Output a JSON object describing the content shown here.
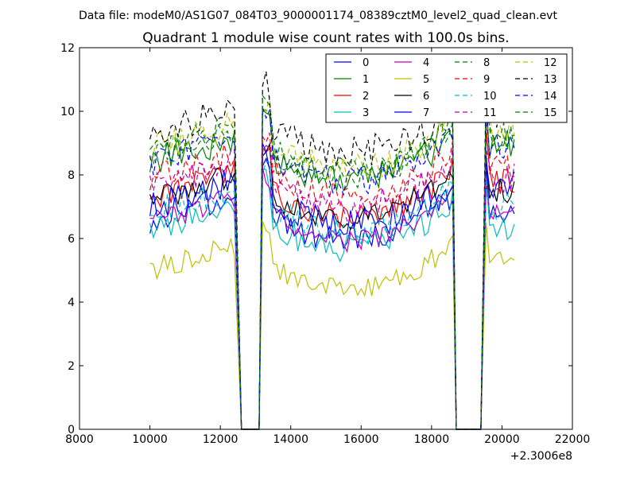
{
  "figure": {
    "suptitle": "Data file: modeM0/AS1G07_084T03_9000001174_08389cztM0_level2_quad_clean.evt",
    "background": "#ffffff"
  },
  "chart_data": {
    "type": "line",
    "title": "Quadrant 1 module wise count rates with 100.0s bins.",
    "xlabel": "",
    "ylabel": "",
    "x_offset_label": "+2.3006e8",
    "xlim": [
      8000,
      22000
    ],
    "ylim": [
      0,
      12
    ],
    "x_ticks": [
      "8000",
      "10000",
      "12000",
      "14000",
      "16000",
      "18000",
      "20000",
      "22000"
    ],
    "y_ticks": [
      "0",
      "2",
      "4",
      "6",
      "8",
      "10",
      "12"
    ],
    "grid": false,
    "legend_position": "top-right",
    "legend_columns": 4,
    "series": [
      {
        "name": "0",
        "color": "#0000ff",
        "dash": "solid",
        "base": 6.6,
        "noise": 0.45,
        "late_peak": 0.0
      },
      {
        "name": "1",
        "color": "#008000",
        "dash": "solid",
        "base": 8.4,
        "noise": 0.5,
        "late_peak": 0.3
      },
      {
        "name": "2",
        "color": "#ff0000",
        "dash": "solid",
        "base": 7.3,
        "noise": 0.4,
        "late_peak": 0.2
      },
      {
        "name": "3",
        "color": "#00bfbf",
        "dash": "solid",
        "base": 6.3,
        "noise": 0.45,
        "late_peak": -0.2
      },
      {
        "name": "4",
        "color": "#bf00bf",
        "dash": "solid",
        "base": 6.5,
        "noise": 0.35,
        "late_peak": 0.0
      },
      {
        "name": "5",
        "color": "#bfbf00",
        "dash": "solid",
        "base": 5.0,
        "noise": 0.35,
        "late_peak": 0.2
      },
      {
        "name": "6",
        "color": "#000000",
        "dash": "solid",
        "base": 7.2,
        "noise": 0.4,
        "late_peak": 0.0
      },
      {
        "name": "7",
        "color": "#0000ff",
        "dash": "solid",
        "base": 7.0,
        "noise": 0.5,
        "late_peak": 0.4
      },
      {
        "name": "8",
        "color": "#008000",
        "dash": "dashed",
        "base": 8.6,
        "noise": 0.45,
        "late_peak": 0.3
      },
      {
        "name": "9",
        "color": "#ff0000",
        "dash": "dashed",
        "base": 7.9,
        "noise": 0.45,
        "late_peak": 0.1
      },
      {
        "name": "10",
        "color": "#00bfbf",
        "dash": "dashed",
        "base": 6.8,
        "noise": 0.45,
        "late_peak": -0.1
      },
      {
        "name": "11",
        "color": "#bf00bf",
        "dash": "dashed",
        "base": 7.6,
        "noise": 0.45,
        "late_peak": 0.0
      },
      {
        "name": "12",
        "color": "#bfbf00",
        "dash": "dashed",
        "base": 8.8,
        "noise": 0.5,
        "late_peak": 0.4
      },
      {
        "name": "13",
        "color": "#000000",
        "dash": "dashed",
        "base": 9.3,
        "noise": 0.5,
        "late_peak": 0.3
      },
      {
        "name": "14",
        "color": "#0000ff",
        "dash": "dashed",
        "base": 8.4,
        "noise": 0.45,
        "late_peak": 0.2
      },
      {
        "name": "15",
        "color": "#008000",
        "dash": "dashed",
        "base": 8.7,
        "noise": 0.45,
        "late_peak": 0.2
      }
    ],
    "segments": [
      {
        "x_start": 10000,
        "x_end": 12450
      },
      {
        "x_start": 13200,
        "x_end": 18600
      },
      {
        "x_start": 19550,
        "x_end": 20400
      }
    ],
    "gaps": [
      {
        "drop_from": 12450,
        "zero_start": 12600,
        "zero_end": 13100,
        "rise_to": 13200
      },
      {
        "drop_from": 18600,
        "zero_start": 18700,
        "zero_end": 19400,
        "rise_to": 19550
      }
    ],
    "bin_seconds": 100
  }
}
